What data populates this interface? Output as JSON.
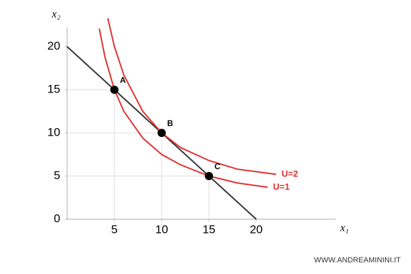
{
  "chart_data": {
    "type": "line",
    "x_label": "x₁",
    "y_label": "x₂",
    "xlim": [
      0,
      28.4
    ],
    "ylim": [
      0,
      23.5
    ],
    "xticks": [
      5,
      10,
      15,
      20
    ],
    "yticks": [
      0,
      5,
      10,
      15,
      20
    ],
    "series": [
      {
        "color": "#333333",
        "x": [
          0,
          20
        ],
        "values": [
          20,
          0
        ]
      },
      {
        "name": "U=1",
        "color": "#e03030",
        "x": [
          3.4,
          4,
          5,
          6,
          8,
          10,
          12,
          15,
          18,
          21.2
        ],
        "values": [
          22.1,
          18.8,
          15,
          12.5,
          9.4,
          7.5,
          6.3,
          5,
          4.2,
          3.7
        ]
      },
      {
        "name": "U=2",
        "color": "#e03030",
        "x": [
          4.3,
          5,
          6,
          8,
          10,
          12,
          15,
          18,
          22.1
        ],
        "values": [
          23.3,
          20,
          16.7,
          12.5,
          10,
          8.3,
          6.8,
          5.8,
          5.2
        ]
      }
    ],
    "points": {
      "labels": [
        "A",
        "B",
        "C"
      ],
      "x": [
        5,
        10,
        15
      ],
      "values": [
        15,
        10,
        5
      ],
      "color": "#000000"
    },
    "watermark": "WWW.ANDREAMININI.IT"
  }
}
